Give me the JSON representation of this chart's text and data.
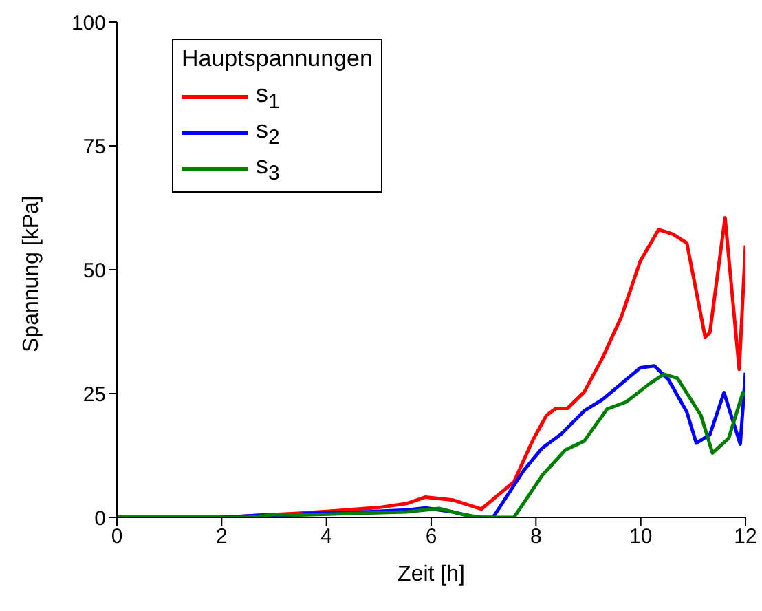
{
  "chart_data": {
    "type": "line",
    "xlabel": "Zeit [h]",
    "ylabel": "Spannung [kPa]",
    "legend_title": "Hauptspannungen",
    "legend": "top left",
    "grid": false,
    "xlim": [
      0,
      12
    ],
    "xticks": [
      0,
      2,
      4,
      6,
      8,
      10,
      12
    ],
    "ylim": [
      0,
      100
    ],
    "yticks": [
      0,
      25,
      50,
      75,
      100
    ],
    "series": [
      {
        "name": "s$_{1}$",
        "color": "#ff0000",
        "x": [
          0,
          2,
          3,
          3.4,
          4,
          5,
          5.53,
          5.89,
          6.42,
          6.96,
          7.58,
          7.94,
          8.2,
          8.38,
          8.6,
          8.92,
          9.27,
          9.63,
          9.99,
          10.34,
          10.61,
          10.88,
          11.23,
          11.32,
          11.61,
          11.88,
          12
        ],
        "values": [
          0,
          0,
          0.6,
          0.8,
          1.2,
          2,
          2.8,
          4.1,
          3.5,
          1.7,
          7.2,
          15.6,
          20.6,
          22,
          22,
          25.3,
          32.2,
          40.5,
          51.7,
          58.1,
          57.2,
          55.4,
          36.4,
          37.3,
          60.5,
          29.9,
          54.9
        ]
      },
      {
        "name": "s$_{2}$",
        "color": "#0000ff",
        "x": [
          0,
          2,
          2.8,
          3.3,
          3.6,
          4.5,
          5.53,
          5.89,
          6.42,
          6.87,
          7.18,
          7.76,
          8.12,
          8.48,
          8.92,
          9.27,
          9.63,
          9.99,
          10.26,
          10.53,
          10.88,
          11.06,
          11.32,
          11.59,
          11.9,
          12
        ],
        "values": [
          0,
          0,
          0.5,
          0.2,
          0.8,
          1,
          1.5,
          1.9,
          1.1,
          0,
          0,
          9.4,
          14,
          16.8,
          21.5,
          23.8,
          27,
          30.2,
          30.6,
          27.8,
          21.3,
          15,
          16.7,
          25.2,
          14.8,
          29.2
        ]
      },
      {
        "name": "s$_{3}$",
        "color": "#008000",
        "x": [
          0,
          2.5,
          3,
          3.5,
          4.5,
          5.53,
          6.15,
          6.6,
          6.96,
          7.58,
          8.12,
          8.56,
          8.92,
          9.36,
          9.72,
          10.17,
          10.44,
          10.7,
          11.15,
          11.37,
          11.68,
          11.95,
          12
        ],
        "values": [
          0,
          0,
          0.6,
          0.5,
          0.8,
          1.1,
          1.8,
          0.6,
          0,
          0,
          8.5,
          13.6,
          15.4,
          21.9,
          23.3,
          27,
          28.9,
          28.1,
          20.6,
          13,
          16,
          25.2,
          24.7
        ]
      }
    ]
  }
}
